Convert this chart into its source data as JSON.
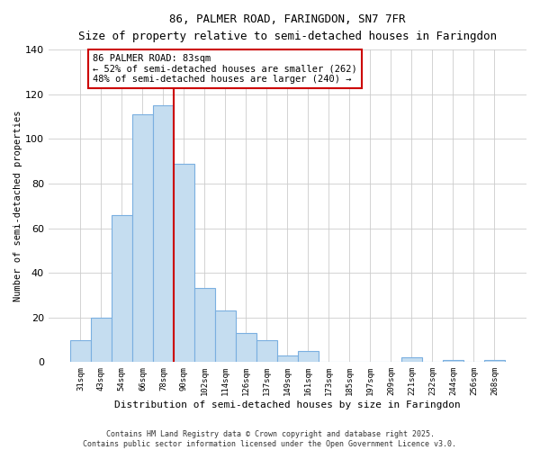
{
  "title": "86, PALMER ROAD, FARINGDON, SN7 7FR",
  "subtitle": "Size of property relative to semi-detached houses in Faringdon",
  "xlabel": "Distribution of semi-detached houses by size in Faringdon",
  "ylabel": "Number of semi-detached properties",
  "bar_labels": [
    "31sqm",
    "43sqm",
    "54sqm",
    "66sqm",
    "78sqm",
    "90sqm",
    "102sqm",
    "114sqm",
    "126sqm",
    "137sqm",
    "149sqm",
    "161sqm",
    "173sqm",
    "185sqm",
    "197sqm",
    "209sqm",
    "221sqm",
    "232sqm",
    "244sqm",
    "256sqm",
    "268sqm"
  ],
  "bar_values": [
    10,
    20,
    66,
    111,
    115,
    89,
    33,
    23,
    13,
    10,
    3,
    5,
    0,
    0,
    0,
    0,
    2,
    0,
    1,
    0,
    1
  ],
  "bar_color": "#c5ddf0",
  "bar_edge_color": "#7aafe0",
  "vline_color": "#cc0000",
  "annotation_text": "86 PALMER ROAD: 83sqm\n← 52% of semi-detached houses are smaller (262)\n48% of semi-detached houses are larger (240) →",
  "annotation_box_color": "#ffffff",
  "annotation_box_edge_color": "#cc0000",
  "ylim": [
    0,
    140
  ],
  "yticks": [
    0,
    20,
    40,
    60,
    80,
    100,
    120,
    140
  ],
  "footer_text": "Contains HM Land Registry data © Crown copyright and database right 2025.\nContains public sector information licensed under the Open Government Licence v3.0.",
  "background_color": "#ffffff",
  "grid_color": "#cccccc"
}
